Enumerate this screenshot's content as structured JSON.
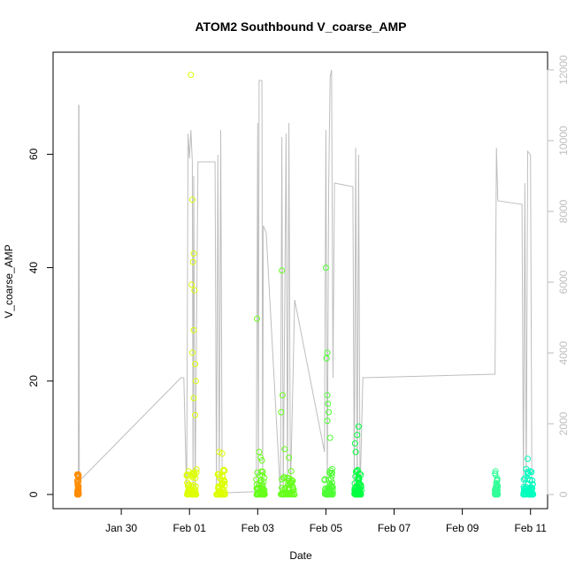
{
  "chart_data": {
    "type": "scatter",
    "title": "ATOM2 Southbound V_coarse_AMP",
    "xlabel": "Date",
    "ylabel": "V_coarse_AMP",
    "x_ticks": [
      "Jan 30",
      "Feb 01",
      "Feb 03",
      "Feb 05",
      "Feb 07",
      "Feb 09",
      "Feb 11"
    ],
    "x_range": [
      "2024-01-28T00:00",
      "2024-02-11T12:00"
    ],
    "y_ticks": [
      0,
      20,
      40,
      60
    ],
    "ylim": [
      -2.5,
      78
    ],
    "y2_ticks": [
      0,
      2000,
      4000,
      6000,
      8000,
      10000,
      12000
    ],
    "y2lim": [
      -400,
      12500
    ],
    "grid": false,
    "colors": {
      "points_cluster1": "#ff8c00",
      "points_cluster2": "#ddff00",
      "points_cluster3": "#66ff1a",
      "points_cluster4": "#4dff33",
      "points_cluster5": "#00ff40",
      "points_cluster6": "#33ff99",
      "points_cluster7": "#00ffbf",
      "secondary_line": "#bebebe",
      "axis": "#000000",
      "right_axis": "#bebebe"
    },
    "clusters": [
      {
        "start": "2024-01-28T17:00",
        "end": "2024-01-28T18:00",
        "color": "#ff8c00",
        "outliers": [
          [
            "2024-01-28T17:10",
            3.5
          ],
          [
            "2024-01-28T17:15",
            2.2
          ],
          [
            "2024-01-28T17:20",
            1.8
          ]
        ]
      },
      {
        "start": "2024-01-31T22:00",
        "end": "2024-02-01T05:00",
        "color": "#ddff00",
        "outliers": [
          [
            "2024-02-01T01:00",
            74
          ],
          [
            "2024-02-01T02:00",
            52
          ],
          [
            "2024-02-01T03:00",
            42.5
          ],
          [
            "2024-02-01T02:30",
            41
          ],
          [
            "2024-02-01T01:30",
            37
          ],
          [
            "2024-02-01T03:30",
            36
          ],
          [
            "2024-02-01T03:00",
            29
          ],
          [
            "2024-02-01T02:00",
            25
          ],
          [
            "2024-02-01T04:00",
            23
          ],
          [
            "2024-02-01T04:30",
            20
          ],
          [
            "2024-02-01T03:00",
            17
          ],
          [
            "2024-02-01T04:00",
            14
          ]
        ]
      },
      {
        "start": "2024-02-01T19:00",
        "end": "2024-02-02T01:00",
        "color": "#ddff00",
        "outliers": [
          [
            "2024-02-01T21:00",
            7.5
          ],
          [
            "2024-02-01T23:00",
            7.2
          ]
        ]
      },
      {
        "start": "2024-02-02T23:00",
        "end": "2024-02-03T05:00",
        "color": "#66ff1a",
        "outliers": [
          [
            "2024-02-02T23:30",
            31
          ],
          [
            "2024-02-03T01:00",
            7.5
          ],
          [
            "2024-02-03T02:00",
            6.5
          ],
          [
            "2024-02-03T03:00",
            6
          ]
        ]
      },
      {
        "start": "2024-02-03T16:00",
        "end": "2024-02-04T02:00",
        "color": "#66ff1a",
        "outliers": [
          [
            "2024-02-03T17:00",
            39.5
          ],
          [
            "2024-02-03T17:30",
            17.5
          ],
          [
            "2024-02-03T16:30",
            14.5
          ],
          [
            "2024-02-03T19:00",
            8
          ],
          [
            "2024-02-03T22:00",
            6.5
          ]
        ]
      },
      {
        "start": "2024-02-04T23:00",
        "end": "2024-02-05T05:00",
        "color": "#4dff33",
        "outliers": [
          [
            "2024-02-05T00:00",
            40
          ],
          [
            "2024-02-05T01:00",
            25
          ],
          [
            "2024-02-05T00:30",
            24
          ],
          [
            "2024-02-05T01:00",
            17.5
          ],
          [
            "2024-02-05T01:30",
            16
          ],
          [
            "2024-02-05T02:00",
            14.5
          ],
          [
            "2024-02-05T01:00",
            13
          ],
          [
            "2024-02-05T03:00",
            10
          ]
        ]
      },
      {
        "start": "2024-02-05T20:00",
        "end": "2024-02-06T01:00",
        "color": "#00ff40",
        "outliers": [
          [
            "2024-02-05T23:00",
            12
          ],
          [
            "2024-02-05T22:00",
            10.5
          ],
          [
            "2024-02-05T20:30",
            9
          ],
          [
            "2024-02-05T21:00",
            7.5
          ]
        ]
      },
      {
        "start": "2024-02-09T23:00",
        "end": "2024-02-10T01:00",
        "color": "#33ff99",
        "outliers": [
          [
            "2024-02-10T00:00",
            0.6
          ]
        ]
      },
      {
        "start": "2024-02-10T19:00",
        "end": "2024-02-11T02:00",
        "color": "#00ffbf",
        "outliers": [
          [
            "2024-02-10T22:00",
            6.3
          ],
          [
            "2024-02-10T21:00",
            4.5
          ],
          [
            "2024-02-10T22:30",
            3.8
          ]
        ]
      }
    ],
    "secondary_line": {
      "axis": "right",
      "points": [
        [
          "2024-01-28T17:00",
          0
        ],
        [
          "2024-01-28T17:45",
          0
        ],
        [
          "2024-01-28T18:00",
          11000
        ],
        [
          "2024-01-28T18:15",
          11000
        ],
        [
          "2024-01-28T18:30",
          0
        ],
        [
          "2024-01-28T19:00",
          400
        ],
        [
          "2024-01-31T18:00",
          3300
        ],
        [
          "2024-01-31T20:00",
          3300
        ],
        [
          "2024-01-31T22:00",
          0
        ],
        [
          "2024-01-31T23:00",
          10200
        ],
        [
          "2024-02-01T00:00",
          9500
        ],
        [
          "2024-02-01T01:00",
          10300
        ],
        [
          "2024-02-01T02:00",
          9400
        ],
        [
          "2024-02-01T02:30",
          0
        ],
        [
          "2024-02-01T03:00",
          9000
        ],
        [
          "2024-02-01T04:00",
          0
        ],
        [
          "2024-02-01T06:00",
          9400
        ],
        [
          "2024-02-01T17:00",
          9400
        ],
        [
          "2024-02-01T18:00",
          9400
        ],
        [
          "2024-02-01T19:00",
          0
        ],
        [
          "2024-02-01T20:00",
          9600
        ],
        [
          "2024-02-01T21:00",
          0
        ],
        [
          "2024-02-01T22:00",
          10300
        ],
        [
          "2024-02-01T23:00",
          0
        ],
        [
          "2024-02-02T02:00",
          50
        ],
        [
          "2024-02-02T23:00",
          80
        ],
        [
          "2024-02-03T00:00",
          10500
        ],
        [
          "2024-02-03T00:30",
          0
        ],
        [
          "2024-02-03T01:00",
          11700
        ],
        [
          "2024-02-03T03:00",
          11700
        ],
        [
          "2024-02-03T03:30",
          0
        ],
        [
          "2024-02-03T04:00",
          7600
        ],
        [
          "2024-02-03T06:00",
          7400
        ],
        [
          "2024-02-03T16:00",
          0
        ],
        [
          "2024-02-03T17:00",
          10100
        ],
        [
          "2024-02-03T18:00",
          0
        ],
        [
          "2024-02-03T20:00",
          10200
        ],
        [
          "2024-02-03T21:00",
          0
        ],
        [
          "2024-02-03T22:00",
          10500
        ],
        [
          "2024-02-03T23:00",
          0
        ],
        [
          "2024-02-04T02:00",
          5500
        ],
        [
          "2024-02-04T23:00",
          1200
        ],
        [
          "2024-02-05T00:00",
          10300
        ],
        [
          "2024-02-05T01:00",
          0
        ],
        [
          "2024-02-05T02:00",
          8800
        ],
        [
          "2024-02-05T03:00",
          11800
        ],
        [
          "2024-02-05T04:00",
          12000
        ],
        [
          "2024-02-05T05:00",
          3300
        ],
        [
          "2024-02-05T06:00",
          8800
        ],
        [
          "2024-02-05T19:00",
          8700
        ],
        [
          "2024-02-05T20:00",
          0
        ],
        [
          "2024-02-05T21:00",
          9800
        ],
        [
          "2024-02-05T22:00",
          0
        ],
        [
          "2024-02-05T23:00",
          9600
        ],
        [
          "2024-02-06T00:00",
          0
        ],
        [
          "2024-02-06T02:00",
          3300
        ],
        [
          "2024-02-09T23:00",
          3400
        ],
        [
          "2024-02-10T00:00",
          9800
        ],
        [
          "2024-02-10T01:00",
          8300
        ],
        [
          "2024-02-10T18:00",
          8200
        ],
        [
          "2024-02-10T19:00",
          0
        ],
        [
          "2024-02-10T20:00",
          8800
        ],
        [
          "2024-02-10T21:00",
          0
        ],
        [
          "2024-02-10T22:00",
          9700
        ],
        [
          "2024-02-11T00:00",
          9600
        ],
        [
          "2024-02-11T01:00",
          0
        ]
      ]
    }
  }
}
